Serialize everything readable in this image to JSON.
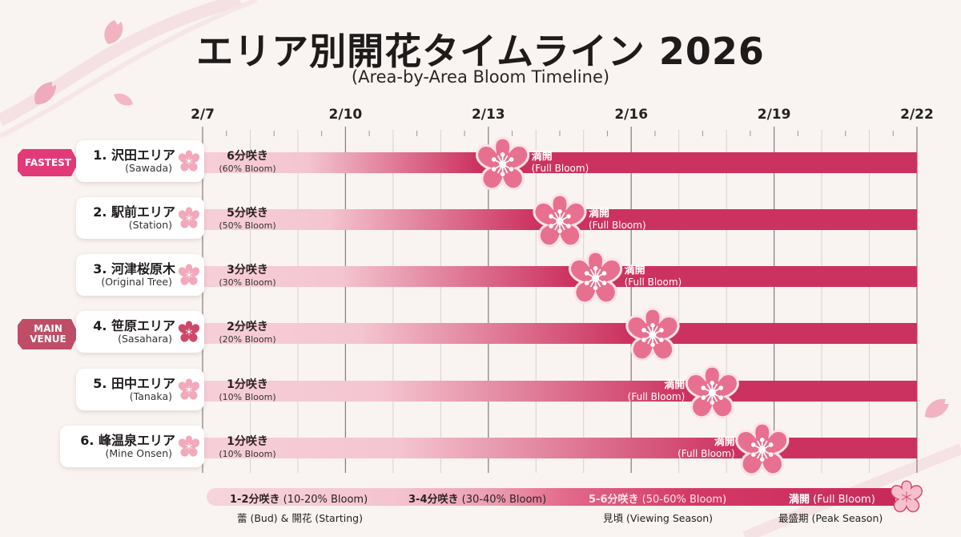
{
  "header": {
    "title": "エリア別開花タイムライン 2026",
    "subtitle": "(Area-by-Area Bloom Timeline)"
  },
  "badges": {
    "fastest": "FASTEST",
    "main_venue_line1": "MAIN",
    "main_venue_line2": "VENUE"
  },
  "colors": {
    "bar_light": "#f6cfd8",
    "bar_dark": "#cc325f",
    "flower": "#e8708f",
    "flower_light": "#f2a9bb",
    "flower_main": "#cf4768",
    "badge_fastest": "#e23a78",
    "badge_main": "#bf4d65",
    "background": "#f9f4f1"
  },
  "chart_data": {
    "type": "timeline",
    "title": "エリア別開花タイムライン 2026",
    "subtitle": "(Area-by-Area Bloom Timeline)",
    "x_unit": "day-of-February",
    "x_range": [
      7,
      22
    ],
    "x_ticks": [
      7,
      10,
      13,
      16,
      19,
      22
    ],
    "x_tick_labels": [
      "2/7",
      "2/10",
      "2/13",
      "2/16",
      "2/19",
      "2/22"
    ],
    "minor_tick_step_days": 0.5,
    "grid": true,
    "rows": [
      {
        "rank": 1,
        "name_jp": "1. 沢田エリア",
        "name_en": "(Sawada)",
        "current_stage_jp": "6分咲き",
        "current_stage_en": "(60% Bloom)",
        "current_pct": 60,
        "full_bloom_day": 13.3,
        "full_bloom_label_jp": "満開",
        "full_bloom_label_en": "(Full Bloom)",
        "label_side": "right",
        "badge": "fastest"
      },
      {
        "rank": 2,
        "name_jp": "2. 駅前エリア",
        "name_en": "(Station)",
        "current_stage_jp": "5分咲き",
        "current_stage_en": "(50% Bloom)",
        "current_pct": 50,
        "full_bloom_day": 14.5,
        "full_bloom_label_jp": "満開",
        "full_bloom_label_en": "(Full Bloom)",
        "label_side": "right",
        "badge": null
      },
      {
        "rank": 3,
        "name_jp": "3. 河津桜原木",
        "name_en": "(Original Tree)",
        "current_stage_jp": "3分咲き",
        "current_stage_en": "(30% Bloom)",
        "current_pct": 30,
        "full_bloom_day": 15.25,
        "full_bloom_label_jp": "満開",
        "full_bloom_label_en": "(Full Bloom)",
        "label_side": "right",
        "badge": null
      },
      {
        "rank": 4,
        "name_jp": "4. 笹原エリア",
        "name_en": "(Sasahara)",
        "current_stage_jp": "2分咲き",
        "current_stage_en": "(20% Bloom)",
        "current_pct": 20,
        "full_bloom_day": 16.45,
        "full_bloom_label_jp": "",
        "full_bloom_label_en": "",
        "label_side": "none",
        "badge": "main_venue"
      },
      {
        "rank": 5,
        "name_jp": "5. 田中エリア",
        "name_en": "(Tanaka)",
        "current_stage_jp": "1分咲き",
        "current_stage_en": "(10% Bloom)",
        "current_pct": 10,
        "full_bloom_day": 17.7,
        "full_bloom_label_jp": "満開",
        "full_bloom_label_en": "(Full Bloom)",
        "label_side": "left",
        "badge": null
      },
      {
        "rank": 6,
        "name_jp": "6. 峰温泉エリア",
        "name_en": "(Mine Onsen)",
        "current_stage_jp": "1分咲き",
        "current_stage_en": "(10% Bloom)",
        "current_pct": 10,
        "full_bloom_day": 18.75,
        "full_bloom_label_jp": "満開",
        "full_bloom_label_en": "(Full Bloom)",
        "label_side": "left",
        "badge": null
      }
    ],
    "legend": [
      {
        "stage_jp": "1-2分咲き",
        "stage_en": "(10-20% Bloom)",
        "desc": "蕾 (Bud) & 開花 (Starting)"
      },
      {
        "stage_jp": "3-4分咲き",
        "stage_en": "(30-40% Bloom)",
        "desc": ""
      },
      {
        "stage_jp": "5-6分咲き",
        "stage_en": "(50-60% Bloom)",
        "desc": "見頃 (Viewing Season)"
      },
      {
        "stage_jp": "満開",
        "stage_en": "(Full Bloom)",
        "desc": "最盛期 (Peak Season)"
      }
    ]
  }
}
